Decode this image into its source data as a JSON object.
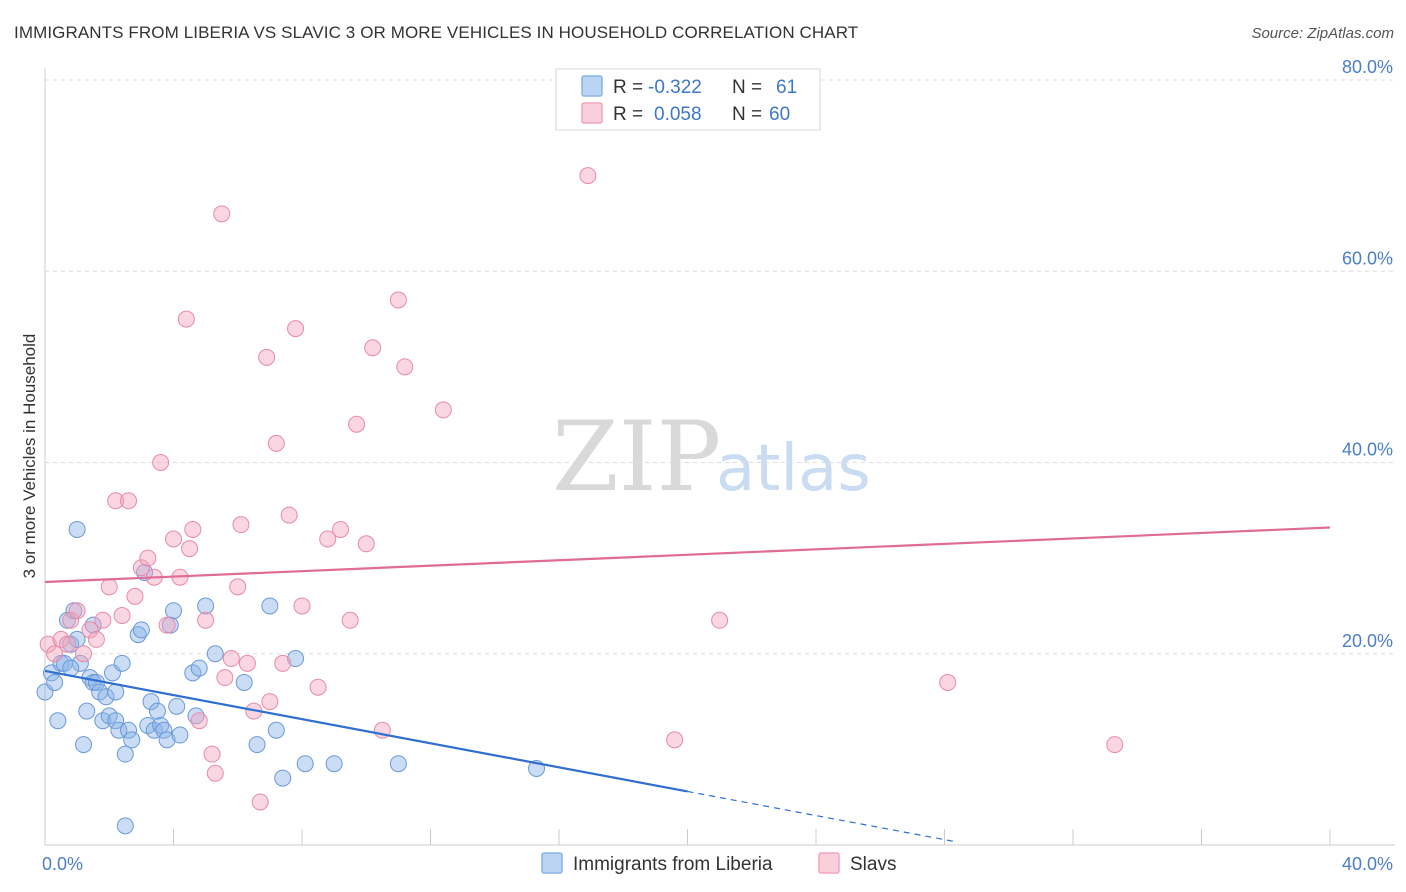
{
  "chart_data": {
    "type": "scatter",
    "title": "IMMIGRANTS FROM LIBERIA VS SLAVIC 3 OR MORE VEHICLES IN HOUSEHOLD CORRELATION CHART",
    "source": "Source: ZipAtlas.com",
    "ylabel": "3 or more Vehicles in Household",
    "xlim": [
      0,
      40
    ],
    "ylim": [
      0,
      80
    ],
    "x_tick_labels": [
      {
        "value": 0,
        "label": "0.0%"
      },
      {
        "value": 40,
        "label": "40.0%"
      }
    ],
    "y_tick_labels": [
      {
        "value": 20,
        "label": "20.0%"
      },
      {
        "value": 40,
        "label": "40.0%"
      },
      {
        "value": 60,
        "label": "60.0%"
      },
      {
        "value": 80,
        "label": "80.0%"
      }
    ],
    "watermark": {
      "zip": "ZIP",
      "atlas": "atlas"
    },
    "legend": {
      "r_label": "R =",
      "n_label": "N =",
      "entries": [
        {
          "r": "-0.322",
          "n": "61",
          "color": "#8ab4e8"
        },
        {
          "r": "0.058",
          "n": "60",
          "color": "#f2a5bd"
        }
      ]
    },
    "series": [
      {
        "name": "Immigrants from Liberia",
        "color": "#8ab4e8",
        "stroke": "#6a9ad8",
        "trend": {
          "x0": 0,
          "y0": 18.2,
          "x1": 20,
          "y1": 5.6,
          "dash_to_x": 28.3,
          "color": "#2f6fd0"
        },
        "points": [
          [
            0.0,
            16
          ],
          [
            0.2,
            18
          ],
          [
            0.4,
            13
          ],
          [
            0.5,
            19
          ],
          [
            0.6,
            19
          ],
          [
            0.7,
            23.5
          ],
          [
            0.8,
            21
          ],
          [
            0.9,
            24.5
          ],
          [
            1.0,
            21.5
          ],
          [
            1.1,
            19
          ],
          [
            1.2,
            10.5
          ],
          [
            1.3,
            14
          ],
          [
            1.4,
            17.5
          ],
          [
            1.5,
            17
          ],
          [
            1.6,
            17
          ],
          [
            1.7,
            16
          ],
          [
            1.8,
            13
          ],
          [
            1.9,
            15.5
          ],
          [
            2.0,
            13.5
          ],
          [
            2.1,
            18
          ],
          [
            2.2,
            13
          ],
          [
            2.3,
            12
          ],
          [
            2.4,
            19
          ],
          [
            2.5,
            9.5
          ],
          [
            2.5,
            2
          ],
          [
            2.6,
            12
          ],
          [
            2.7,
            11
          ],
          [
            2.9,
            22
          ],
          [
            3.0,
            22.5
          ],
          [
            3.1,
            28.5
          ],
          [
            3.2,
            12.5
          ],
          [
            3.3,
            15
          ],
          [
            3.4,
            12
          ],
          [
            3.5,
            14
          ],
          [
            3.6,
            12.5
          ],
          [
            3.7,
            12
          ],
          [
            3.8,
            11
          ],
          [
            3.9,
            23
          ],
          [
            4.0,
            24.5
          ],
          [
            4.1,
            14.5
          ],
          [
            4.2,
            11.5
          ],
          [
            4.6,
            18
          ],
          [
            4.7,
            13.5
          ],
          [
            4.8,
            18.5
          ],
          [
            5.0,
            25
          ],
          [
            5.3,
            20
          ],
          [
            6.2,
            17
          ],
          [
            6.6,
            10.5
          ],
          [
            7.0,
            25
          ],
          [
            7.2,
            12
          ],
          [
            7.4,
            7
          ],
          [
            7.8,
            19.5
          ],
          [
            8.1,
            8.5
          ],
          [
            9.0,
            8.5
          ],
          [
            11.0,
            8.5
          ],
          [
            15.3,
            8
          ],
          [
            1.0,
            33
          ],
          [
            1.5,
            23
          ],
          [
            0.8,
            18.5
          ],
          [
            2.2,
            16
          ],
          [
            0.3,
            17
          ]
        ]
      },
      {
        "name": "Slavs",
        "color": "#f2a5bd",
        "stroke": "#e88aa8",
        "trend": {
          "x0": 0,
          "y0": 27.5,
          "x1": 40,
          "y1": 33.2,
          "color": "#e06b94"
        },
        "points": [
          [
            0.1,
            21
          ],
          [
            0.3,
            20
          ],
          [
            0.5,
            21.5
          ],
          [
            0.7,
            21
          ],
          [
            0.8,
            23.5
          ],
          [
            1.0,
            24.5
          ],
          [
            1.2,
            20
          ],
          [
            1.4,
            22.5
          ],
          [
            1.6,
            21.5
          ],
          [
            1.8,
            23.5
          ],
          [
            2.0,
            27
          ],
          [
            2.2,
            36
          ],
          [
            2.4,
            24
          ],
          [
            2.6,
            36
          ],
          [
            2.8,
            26
          ],
          [
            3.0,
            29
          ],
          [
            3.2,
            30
          ],
          [
            3.4,
            28
          ],
          [
            3.6,
            40
          ],
          [
            3.8,
            23
          ],
          [
            4.0,
            32
          ],
          [
            4.2,
            28
          ],
          [
            4.4,
            55
          ],
          [
            4.6,
            33
          ],
          [
            4.8,
            13
          ],
          [
            5.0,
            23.5
          ],
          [
            5.2,
            9.5
          ],
          [
            5.3,
            7.5
          ],
          [
            5.5,
            66
          ],
          [
            5.6,
            17.5
          ],
          [
            5.8,
            19.5
          ],
          [
            6.0,
            27
          ],
          [
            6.1,
            33.5
          ],
          [
            6.3,
            19
          ],
          [
            6.5,
            14
          ],
          [
            6.7,
            4.5
          ],
          [
            6.9,
            51
          ],
          [
            7.0,
            15
          ],
          [
            7.2,
            42
          ],
          [
            7.4,
            19
          ],
          [
            7.6,
            34.5
          ],
          [
            7.8,
            54
          ],
          [
            8.0,
            25
          ],
          [
            8.5,
            16.5
          ],
          [
            8.8,
            32
          ],
          [
            9.2,
            33
          ],
          [
            9.5,
            23.5
          ],
          [
            9.7,
            44
          ],
          [
            10.0,
            31.5
          ],
          [
            10.2,
            52
          ],
          [
            10.5,
            12
          ],
          [
            11.0,
            57
          ],
          [
            11.2,
            50
          ],
          [
            12.4,
            45.5
          ],
          [
            16.9,
            70
          ],
          [
            19.6,
            11
          ],
          [
            21.0,
            23.5
          ],
          [
            28.1,
            17
          ],
          [
            33.3,
            10.5
          ],
          [
            4.5,
            31
          ]
        ]
      }
    ]
  }
}
